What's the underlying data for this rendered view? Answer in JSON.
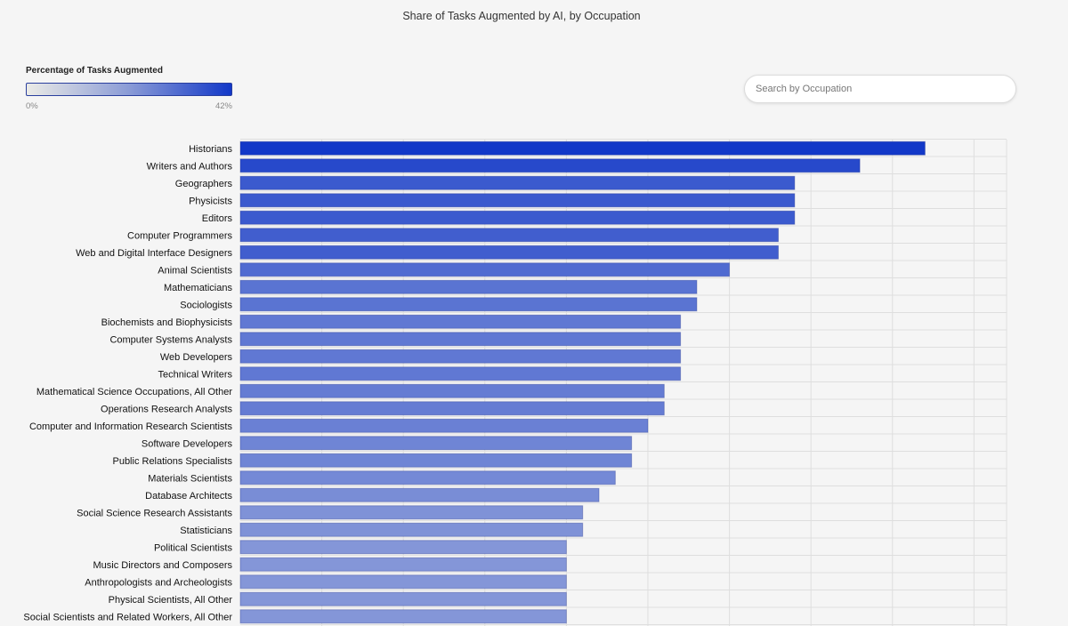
{
  "title": "Share of Tasks Augmented by AI, by Occupation",
  "legend": {
    "title": "Percentage of Tasks Augmented",
    "min_label": "0%",
    "max_label": "42%"
  },
  "search": {
    "placeholder": "Search by Occupation",
    "value": ""
  },
  "colors": {
    "low": "#ebebe6",
    "high": "#1238c8",
    "grid": "#dedede",
    "background": "#f5f5f5"
  },
  "chart_data": {
    "type": "bar",
    "orientation": "horizontal",
    "title": "Share of Tasks Augmented by AI, by Occupation",
    "xlabel": "",
    "ylabel": "",
    "xlim": [
      0,
      47
    ],
    "grid": true,
    "categories": [
      "Historians",
      "Writers and Authors",
      "Geographers",
      "Physicists",
      "Editors",
      "Computer Programmers",
      "Web and Digital Interface Designers",
      "Animal Scientists",
      "Mathematicians",
      "Sociologists",
      "Biochemists and Biophysicists",
      "Computer Systems Analysts",
      "Web Developers",
      "Technical Writers",
      "Mathematical Science Occupations, All Other",
      "Operations Research Analysts",
      "Computer and Information Research Scientists",
      "Software Developers",
      "Public Relations Specialists",
      "Materials Scientists",
      "Database Architects",
      "Social Science Research Assistants",
      "Statisticians",
      "Political Scientists",
      "Music Directors and Composers",
      "Anthropologists and Archeologists",
      "Physical Scientists, All Other",
      "Social Scientists and Related Workers, All Other"
    ],
    "values": [
      42,
      38,
      34,
      34,
      34,
      33,
      33,
      30,
      28,
      28,
      27,
      27,
      27,
      27,
      26,
      26,
      25,
      24,
      24,
      23,
      22,
      21,
      21,
      20,
      20,
      20,
      20,
      20
    ]
  }
}
